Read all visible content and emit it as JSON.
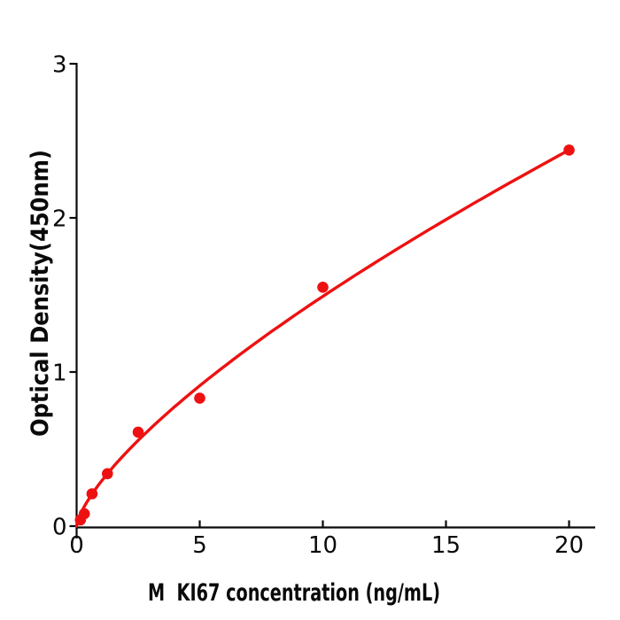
{
  "chart_data": {
    "type": "scatter",
    "title": "",
    "xlabel": "M  KI67 concentration (ng/mL)",
    "ylabel": "Optical Density(450nm)",
    "xlim": [
      0,
      21.1
    ],
    "ylim": [
      0,
      3
    ],
    "x_ticks": [
      0,
      5,
      10,
      15,
      20
    ],
    "x_tick_labels": [
      "0",
      "5",
      "10",
      "15",
      "20"
    ],
    "y_ticks": [
      0,
      1,
      2,
      3
    ],
    "y_tick_labels": [
      "0",
      "1",
      "2",
      "3"
    ],
    "grid": false,
    "legend": false,
    "points": [
      {
        "x": 0.156,
        "y": 0.04
      },
      {
        "x": 0.3125,
        "y": 0.08
      },
      {
        "x": 0.625,
        "y": 0.21
      },
      {
        "x": 1.25,
        "y": 0.34
      },
      {
        "x": 2.5,
        "y": 0.61
      },
      {
        "x": 5,
        "y": 0.83
      },
      {
        "x": 10,
        "y": 1.55
      },
      {
        "x": 20,
        "y": 2.44
      }
    ],
    "fit_curve": {
      "type": "power",
      "a": 0.29,
      "b": 0.711,
      "x_range": [
        0,
        20
      ]
    },
    "colors": {
      "marker": "#ee1111",
      "line": "#ee1111",
      "axis": "#0a0a0a",
      "background": "#ffffff"
    }
  }
}
